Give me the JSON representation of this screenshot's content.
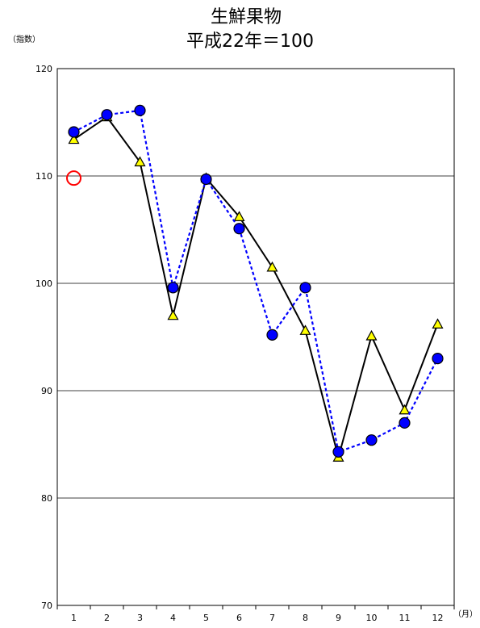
{
  "chart_data": {
    "type": "line",
    "title": "生鮮果物",
    "subtitle": "平成22年＝100",
    "ylabel": "（指数）",
    "xlabel": "（月）",
    "ylim": [
      70,
      120
    ],
    "yticks": [
      70,
      80,
      90,
      100,
      110,
      120
    ],
    "categories": [
      "1",
      "2",
      "3",
      "4",
      "5",
      "6",
      "7",
      "8",
      "9",
      "10",
      "11",
      "12"
    ],
    "grid": true,
    "series": [
      {
        "style": "solid",
        "line_color": "#000000",
        "marker": "triangle",
        "marker_color": "#FFFF00",
        "values": [
          113.4,
          115.5,
          111.3,
          97.0,
          109.8,
          106.2,
          101.5,
          95.6,
          83.8,
          95.1,
          88.2,
          96.2
        ]
      },
      {
        "style": "dashed",
        "line_color": "#0000FF",
        "marker": "circle",
        "marker_color": "#0000FF",
        "values": [
          114.1,
          115.7,
          116.1,
          99.6,
          109.7,
          105.1,
          95.2,
          99.6,
          84.3,
          85.4,
          87.0,
          93.0
        ]
      },
      {
        "style": "none",
        "marker": "open-circle",
        "marker_color": "#FF0000",
        "values": [
          109.8,
          null,
          null,
          null,
          null,
          null,
          null,
          null,
          null,
          null,
          null,
          null
        ]
      }
    ]
  }
}
